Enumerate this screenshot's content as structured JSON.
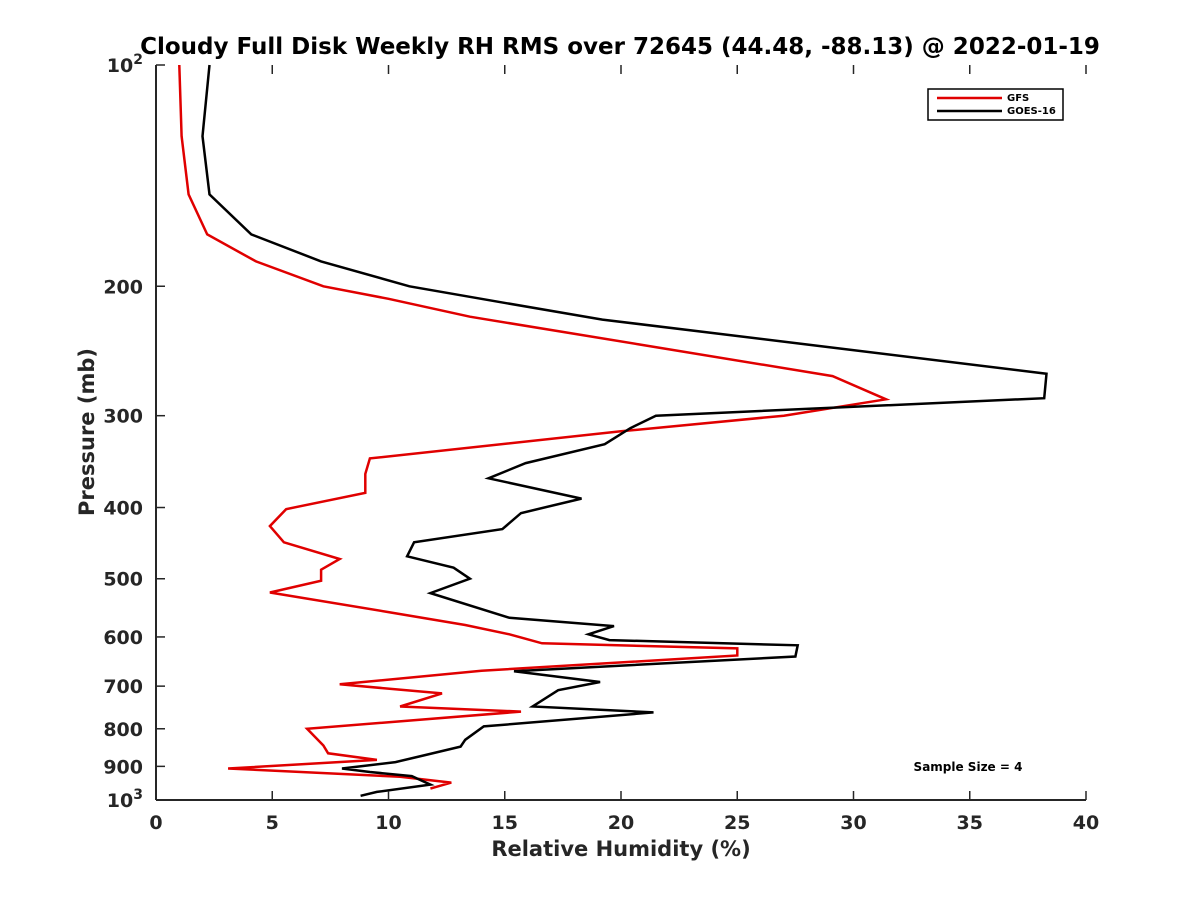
{
  "chart_data": {
    "type": "line",
    "title": "Cloudy Full Disk Weekly RH RMS over 72645 (44.48, -88.13) @ 2022-01-19",
    "xlabel": "Relative Humidity (%)",
    "ylabel": "Pressure (mb)",
    "xlim": [
      0,
      40
    ],
    "ylim": [
      100,
      1000
    ],
    "y_scale": "log",
    "y_reversed": true,
    "grid": false,
    "legend_position": "top-right",
    "x_ticks": [
      0,
      5,
      10,
      15,
      20,
      25,
      30,
      35,
      40
    ],
    "x_tick_labels": [
      "0",
      "5",
      "10",
      "15",
      "20",
      "25",
      "30",
      "35",
      "40"
    ],
    "y_ticks": [
      100,
      200,
      300,
      400,
      500,
      600,
      700,
      800,
      900,
      1000
    ],
    "y_tick_labels": [
      {
        "base": "10",
        "exp": "2"
      },
      {
        "base": "200",
        "exp": ""
      },
      {
        "base": "300",
        "exp": ""
      },
      {
        "base": "400",
        "exp": ""
      },
      {
        "base": "500",
        "exp": ""
      },
      {
        "base": "600",
        "exp": ""
      },
      {
        "base": "700",
        "exp": ""
      },
      {
        "base": "800",
        "exp": ""
      },
      {
        "base": "900",
        "exp": ""
      },
      {
        "base": "10",
        "exp": "3"
      }
    ],
    "annotation": "Sample Size = 4",
    "series": [
      {
        "name": "GFS",
        "color": "#e00000",
        "points": [
          [
            1.0,
            100
          ],
          [
            1.1,
            125
          ],
          [
            1.4,
            150
          ],
          [
            2.2,
            170
          ],
          [
            4.3,
            185
          ],
          [
            7.2,
            200
          ],
          [
            10.0,
            208
          ],
          [
            13.5,
            220
          ],
          [
            20.8,
            240
          ],
          [
            29.1,
            265
          ],
          [
            31.4,
            285
          ],
          [
            27.0,
            300
          ],
          [
            20.0,
            315
          ],
          [
            9.2,
            343
          ],
          [
            9.0,
            360
          ],
          [
            9.0,
            382
          ],
          [
            5.6,
            402
          ],
          [
            4.9,
            424
          ],
          [
            5.5,
            446
          ],
          [
            7.9,
            470
          ],
          [
            7.1,
            486
          ],
          [
            7.1,
            503
          ],
          [
            4.9,
            522
          ],
          [
            10.0,
            555
          ],
          [
            13.3,
            578
          ],
          [
            15.2,
            595
          ],
          [
            16.6,
            612
          ],
          [
            25.0,
            622
          ],
          [
            25.0,
            636
          ],
          [
            14.0,
            667
          ],
          [
            7.9,
            696
          ],
          [
            12.3,
            716
          ],
          [
            10.5,
            746
          ],
          [
            15.7,
            758
          ],
          [
            6.5,
            800
          ],
          [
            7.2,
            843
          ],
          [
            7.4,
            864
          ],
          [
            9.5,
            882
          ],
          [
            3.1,
            906
          ],
          [
            10.5,
            930
          ],
          [
            12.7,
            947
          ],
          [
            11.8,
            965
          ]
        ]
      },
      {
        "name": "GOES-16",
        "color": "#000000",
        "points": [
          [
            2.3,
            100
          ],
          [
            2.0,
            125
          ],
          [
            2.3,
            150
          ],
          [
            4.1,
            170
          ],
          [
            7.1,
            185
          ],
          [
            10.9,
            200
          ],
          [
            15.1,
            211
          ],
          [
            19.2,
            222
          ],
          [
            28.0,
            240
          ],
          [
            38.3,
            263
          ],
          [
            38.2,
            284
          ],
          [
            21.5,
            300
          ],
          [
            20.4,
            312
          ],
          [
            19.3,
            328
          ],
          [
            15.9,
            348
          ],
          [
            14.3,
            365
          ],
          [
            18.3,
            389
          ],
          [
            15.7,
            407
          ],
          [
            14.9,
            428
          ],
          [
            11.1,
            446
          ],
          [
            10.8,
            466
          ],
          [
            12.8,
            483
          ],
          [
            13.5,
            500
          ],
          [
            11.8,
            523
          ],
          [
            15.2,
            565
          ],
          [
            19.7,
            580
          ],
          [
            18.6,
            595
          ],
          [
            19.5,
            606
          ],
          [
            27.6,
            616
          ],
          [
            27.5,
            638
          ],
          [
            15.4,
            668
          ],
          [
            19.1,
            691
          ],
          [
            17.3,
            709
          ],
          [
            16.2,
            746
          ],
          [
            21.4,
            760
          ],
          [
            14.1,
            794
          ],
          [
            13.3,
            828
          ],
          [
            13.1,
            846
          ],
          [
            11.5,
            870
          ],
          [
            10.3,
            888
          ],
          [
            8.0,
            906
          ],
          [
            9.2,
            916
          ],
          [
            11.0,
            928
          ],
          [
            11.8,
            953
          ],
          [
            9.5,
            975
          ],
          [
            8.8,
            987
          ]
        ]
      }
    ]
  }
}
